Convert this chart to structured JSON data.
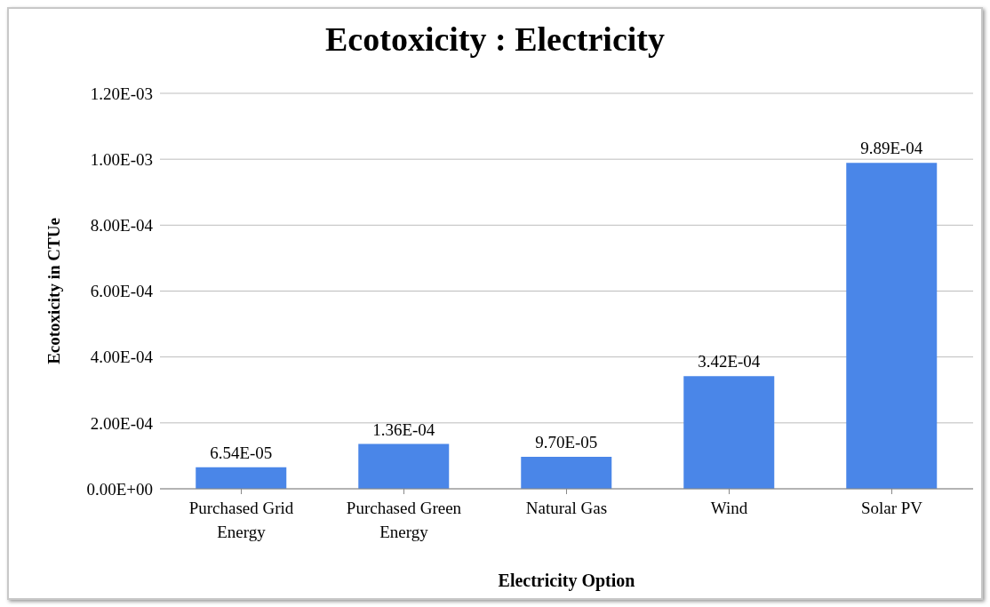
{
  "chart_data": {
    "type": "bar",
    "title": "Ecotoxicity : Electricity",
    "xlabel": "Electricity Option",
    "ylabel": "Ecotoxicity in CTUe",
    "categories": [
      "Purchased Grid Energy",
      "Purchased Green Energy",
      "Natural Gas",
      "Wind",
      "Solar PV"
    ],
    "values": [
      6.54e-05,
      0.000136,
      9.7e-05,
      0.000342,
      0.000989
    ],
    "value_labels": [
      "6.54E-05",
      "1.36E-04",
      "9.70E-05",
      "3.42E-04",
      "9.89E-04"
    ],
    "color": "#4a86e8",
    "ylim": [
      0,
      0.0012
    ],
    "yticks": [
      {
        "value": 0,
        "label": "0.00E+00"
      },
      {
        "value": 0.0002,
        "label": "2.00E-04"
      },
      {
        "value": 0.0004,
        "label": "4.00E-04"
      },
      {
        "value": 0.0006,
        "label": "6.00E-04"
      },
      {
        "value": 0.0008,
        "label": "8.00E-04"
      },
      {
        "value": 0.001,
        "label": "1.00E-03"
      },
      {
        "value": 0.0012,
        "label": "1.20E-03"
      }
    ],
    "grid": "y",
    "legend": false
  }
}
